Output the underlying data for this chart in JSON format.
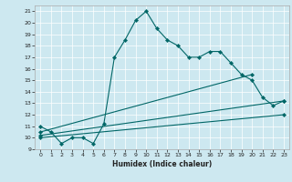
{
  "xlabel": "Humidex (Indice chaleur)",
  "bg_color": "#cde8f0",
  "line_color": "#006666",
  "grid_color": "#ffffff",
  "xlim": [
    -0.5,
    23.5
  ],
  "ylim": [
    9,
    21.5
  ],
  "xticks": [
    0,
    1,
    2,
    3,
    4,
    5,
    6,
    7,
    8,
    9,
    10,
    11,
    12,
    13,
    14,
    15,
    16,
    17,
    18,
    19,
    20,
    21,
    22,
    23
  ],
  "yticks": [
    9,
    10,
    11,
    12,
    13,
    14,
    15,
    16,
    17,
    18,
    19,
    20,
    21
  ],
  "main_line": {
    "x": [
      0,
      1,
      2,
      3,
      4,
      5,
      6,
      7,
      8,
      9,
      10,
      11,
      12,
      13,
      14,
      15,
      16,
      17,
      18,
      19,
      20,
      21,
      22,
      23
    ],
    "y": [
      11,
      10.5,
      9.5,
      10,
      10,
      9.5,
      11.2,
      17,
      18.5,
      20.2,
      21,
      19.5,
      18.5,
      18,
      17,
      17,
      17.5,
      17.5,
      16.5,
      15.5,
      15,
      13.5,
      12.8,
      13.2
    ]
  },
  "trend_lines": [
    {
      "x": [
        0,
        20
      ],
      "y": [
        10.5,
        15.5
      ]
    },
    {
      "x": [
        0,
        23
      ],
      "y": [
        10.2,
        13.2
      ]
    },
    {
      "x": [
        0,
        23
      ],
      "y": [
        10.0,
        12.0
      ]
    }
  ]
}
